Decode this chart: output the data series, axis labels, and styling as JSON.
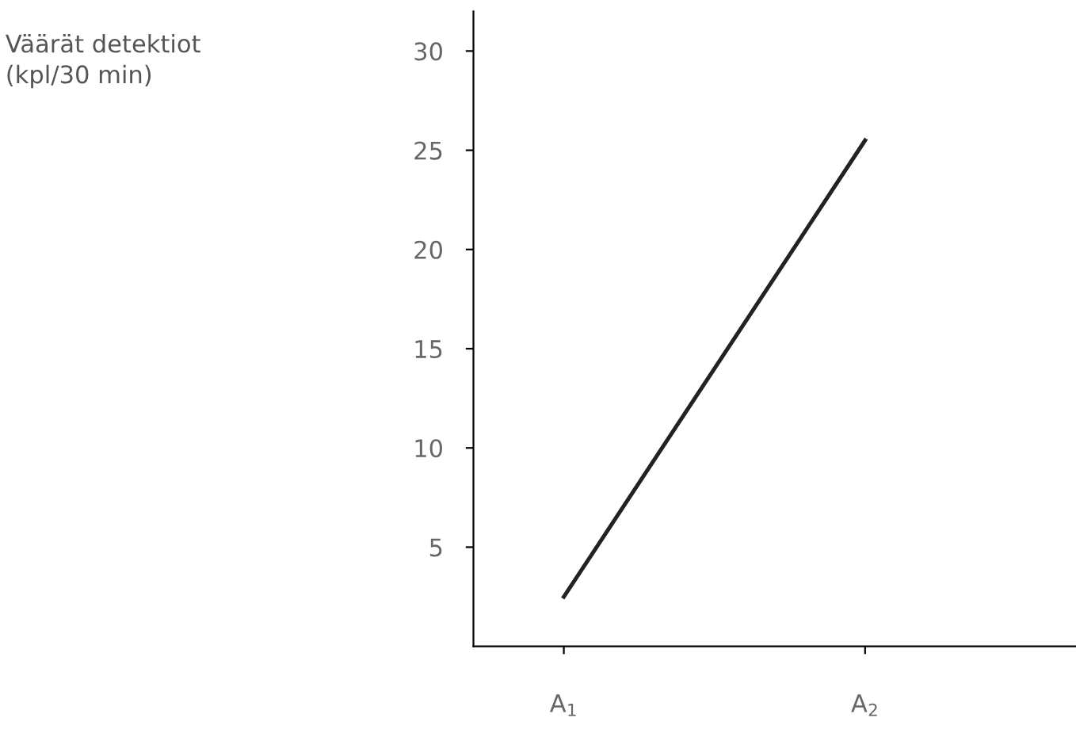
{
  "chart_data": {
    "type": "line",
    "annotations": [
      "Väärät detektiot\n(kpl/30 min)"
    ],
    "categories": [
      "A$_{1}$",
      "A$_{2}$"
    ],
    "series": [
      {
        "color": "#222222",
        "values": [
          2.5,
          25.5
        ]
      }
    ],
    "ylim": [
      0,
      32
    ],
    "yticks": [
      5,
      10,
      15,
      20,
      25,
      30
    ],
    "grid": false,
    "legend": false,
    "marker": "none",
    "line_style": "solid"
  }
}
